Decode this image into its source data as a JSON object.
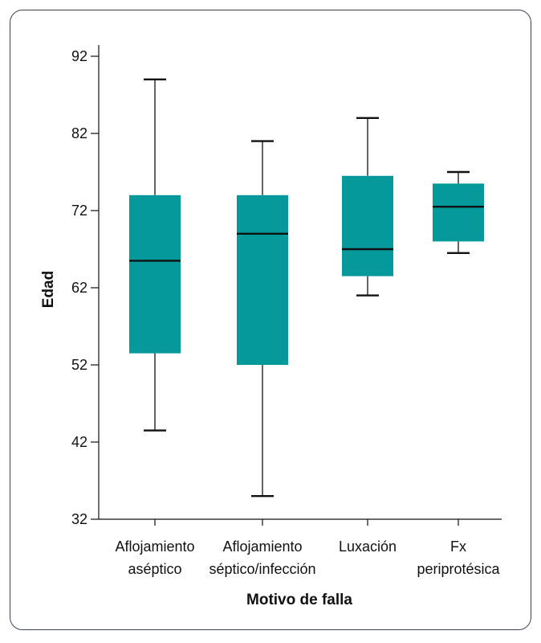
{
  "chart_data": {
    "type": "boxplot",
    "title": "",
    "xlabel": "Motivo de falla",
    "ylabel": "Edad",
    "ylim": [
      32,
      92
    ],
    "yticks": [
      32,
      42,
      52,
      62,
      72,
      82,
      92
    ],
    "grid": false,
    "legend": "none",
    "box_color": "#05999b",
    "categories": [
      [
        "Aflojamiento",
        "aséptico"
      ],
      [
        "Aflojamiento",
        "séptico/infección"
      ],
      [
        "Luxación"
      ],
      [
        "Fx",
        "periprotésica"
      ]
    ],
    "boxes": [
      {
        "min": 43.5,
        "q1": 53.5,
        "median": 65.5,
        "q3": 74,
        "max": 89
      },
      {
        "min": 35,
        "q1": 52,
        "median": 69,
        "q3": 74,
        "max": 81
      },
      {
        "min": 61,
        "q1": 63.5,
        "median": 67,
        "q3": 76.5,
        "max": 84
      },
      {
        "min": 66.5,
        "q1": 68,
        "median": 72.5,
        "q3": 75.5,
        "max": 77
      }
    ]
  }
}
